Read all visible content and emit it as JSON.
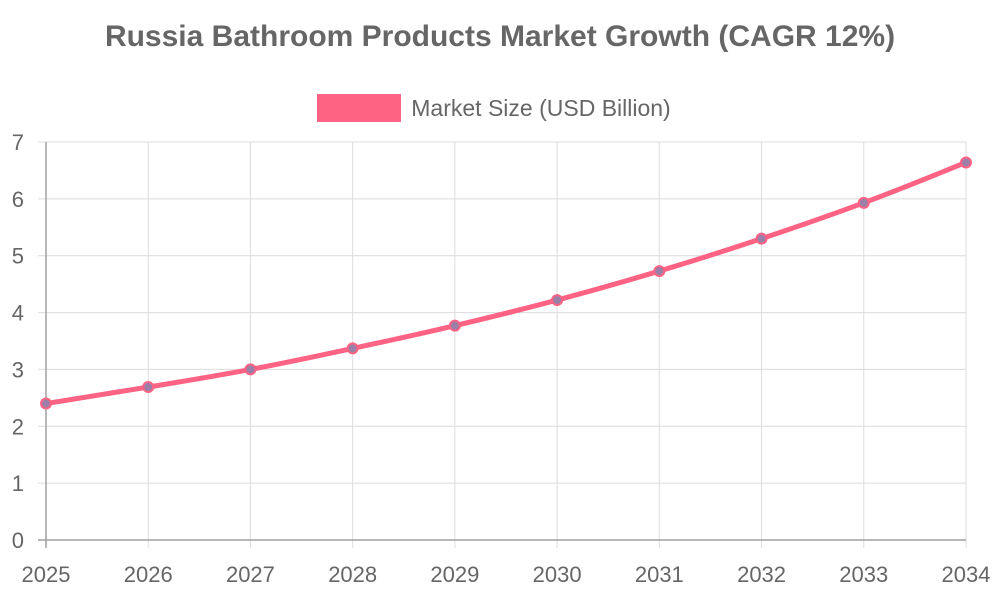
{
  "chart_data": {
    "type": "line",
    "title": "Russia Bathroom Products Market Growth (CAGR 12%)",
    "x": [
      "2025",
      "2026",
      "2027",
      "2028",
      "2029",
      "2030",
      "2031",
      "2032",
      "2033",
      "2034"
    ],
    "series": [
      {
        "name": "Market Size (USD Billion)",
        "values": [
          2.4,
          2.69,
          3.0,
          3.37,
          3.77,
          4.22,
          4.73,
          5.3,
          5.93,
          6.64
        ],
        "color": "#ff6384",
        "point_color": "#9b7fa8"
      }
    ],
    "yticks": [
      "0",
      "1",
      "2",
      "3",
      "4",
      "5",
      "6",
      "7"
    ],
    "ylim": [
      0,
      7
    ],
    "grid": true,
    "legend": "top-center"
  }
}
